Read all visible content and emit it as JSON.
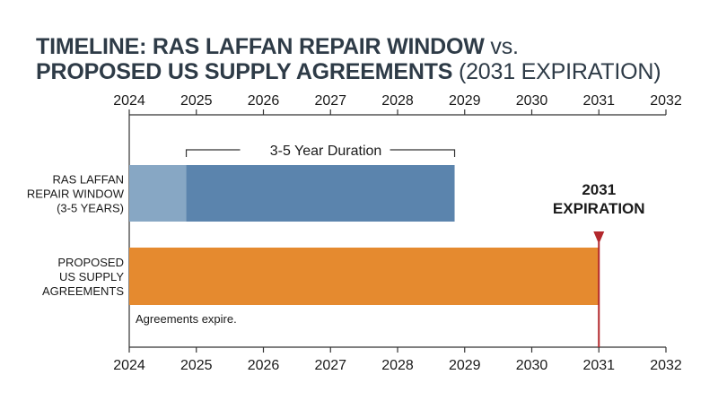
{
  "title": {
    "line1_bold": "TIMELINE: RAS LAFFAN REPAIR WINDOW",
    "line1_light": " vs.",
    "line2_bold": "PROPOSED US SUPPLY AGREEMENTS",
    "line2_light": " (2031 EXPIRATION)"
  },
  "chart_data": {
    "type": "bar",
    "orientation": "horizontal-timeline",
    "x_ticks": [
      "2024",
      "2025",
      "2026",
      "2027",
      "2028",
      "2029",
      "2030",
      "2031",
      "2032"
    ],
    "xlim": [
      2024,
      2032
    ],
    "rows": [
      {
        "label_lines": [
          "RAS LAFFAN",
          "REPAIR WINDOW",
          "(3-5 YEARS)"
        ],
        "segments": [
          {
            "start": 2024.0,
            "end": 2024.85,
            "color": "#87a7c4"
          },
          {
            "start": 2024.85,
            "end": 2028.85,
            "color": "#5b84ad"
          }
        ]
      },
      {
        "label_lines": [
          "PROPOSED",
          "US SUPPLY",
          "AGREEMENTS"
        ],
        "segments": [
          {
            "start": 2024.0,
            "end": 2031.0,
            "color": "#e58a2f"
          }
        ]
      }
    ],
    "bracket": {
      "start": 2024.85,
      "end": 2028.85,
      "label": "3-5 Year Duration"
    },
    "marker": {
      "x": 2031,
      "label_lines": [
        "2031",
        "EXPIRATION"
      ],
      "color": "#b3282d"
    },
    "note": "Agreements expire.",
    "grid": false
  }
}
